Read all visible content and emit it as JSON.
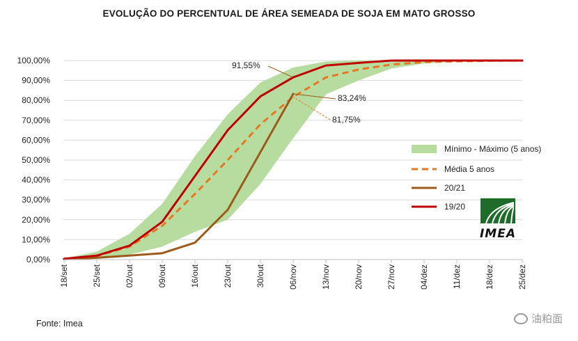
{
  "chart_data": {
    "type": "line",
    "title": "EVOLUÇÃO DO PERCENTUAL DE ÁREA SEMEADA DE SOJA EM MATO GROSSO",
    "xlabel": "",
    "ylabel": "",
    "ylim": [
      0,
      100
    ],
    "y_ticks": [
      "0,00%",
      "10,00%",
      "20,00%",
      "30,00%",
      "40,00%",
      "50,00%",
      "60,00%",
      "70,00%",
      "80,00%",
      "90,00%",
      "100,00%"
    ],
    "categories": [
      "18/set",
      "25/set",
      "02/out",
      "09/out",
      "16/out",
      "23/out",
      "30/out",
      "06/nov",
      "13/nov",
      "20/nov",
      "27/nov",
      "04/dez",
      "11/dez",
      "18/dez",
      "25/dez"
    ],
    "band": {
      "name": "Mínimo - Máximo (5 anos)",
      "color": "#b7dca0",
      "min": [
        0.2,
        0.8,
        2.5,
        6.5,
        14,
        20,
        38,
        61,
        83,
        90,
        96,
        98.5,
        99.5,
        99.9,
        100
      ],
      "max": [
        0.6,
        4,
        13,
        28,
        52,
        73,
        89,
        96.5,
        99.5,
        100,
        100,
        100,
        100,
        100,
        100
      ]
    },
    "series": [
      {
        "name": "Média 5 anos",
        "color": "#e87722",
        "dashed": true,
        "values": [
          0.4,
          1.8,
          6.5,
          17,
          33,
          50,
          68,
          81.75,
          91.5,
          95.5,
          98,
          99.2,
          99.6,
          99.9,
          100
        ]
      },
      {
        "name": "20/21",
        "color": "#9c5a19",
        "dashed": false,
        "values": [
          0.2,
          0.9,
          2,
          3.2,
          8.5,
          25,
          54,
          83.24,
          null,
          null,
          null,
          null,
          null,
          null,
          null
        ]
      },
      {
        "name": "19/20",
        "color": "#c00000",
        "dashed": false,
        "values": [
          0.4,
          2,
          7,
          19,
          42,
          65,
          82,
          91.55,
          97.5,
          98.8,
          100,
          100,
          100,
          100,
          100
        ]
      }
    ],
    "annotations": [
      {
        "text": "91,55%",
        "value": 91.55
      },
      {
        "text": "83,24%",
        "value": 83.24
      },
      {
        "text": "81,75%",
        "value": 81.75
      }
    ],
    "legend_position": "right"
  },
  "logo": {
    "text": "IMEA",
    "color": "#1f6b2a"
  },
  "source_text": "Fonte: Imea",
  "watermark_text": "油粕面"
}
